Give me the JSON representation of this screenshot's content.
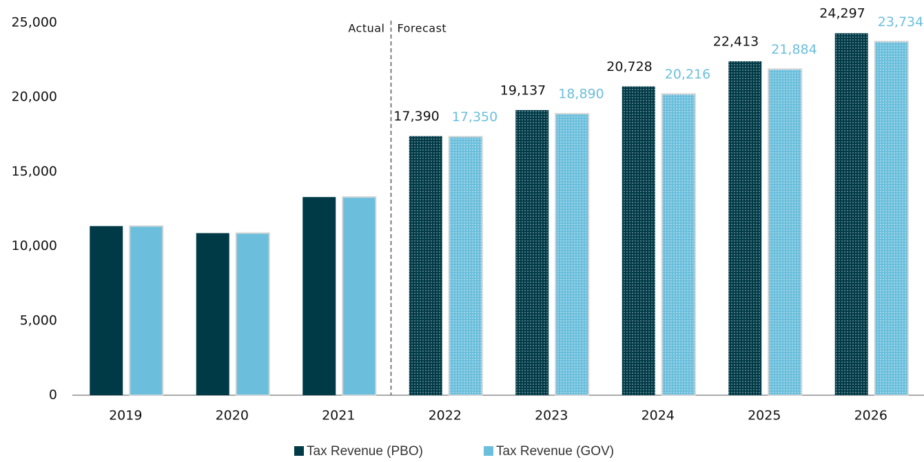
{
  "chart_data": {
    "type": "bar",
    "categories": [
      "2019",
      "2020",
      "2021",
      "2022",
      "2023",
      "2024",
      "2025",
      "2026"
    ],
    "series": [
      {
        "name": "Tax Revenue (PBO)",
        "color": "#003a47",
        "values": [
          11350,
          10880,
          13300,
          17390,
          19137,
          20728,
          22413,
          24297
        ],
        "value_labels": [
          null,
          null,
          null,
          "17,390",
          "19,137",
          "20,728",
          "22,413",
          "24,297"
        ]
      },
      {
        "name": "Tax Revenue (GOV)",
        "color": "#6bbfdc",
        "values": [
          11350,
          10880,
          13300,
          17350,
          18890,
          20216,
          21884,
          23734
        ],
        "value_labels": [
          null,
          null,
          null,
          "17,350",
          "18,890",
          "20,216",
          "21,884",
          "23,734"
        ]
      }
    ],
    "annotations": [
      "Actual",
      "Forecast"
    ],
    "ylim": [
      0,
      25000
    ],
    "yticks": [
      0,
      {
        "value": 5000,
        "label": "5,000"
      },
      {
        "value": 10000,
        "label": "10,000"
      },
      {
        "value": 15000,
        "label": "15,000"
      },
      {
        "value": 20000,
        "label": "20,000"
      },
      {
        "value": 25000,
        "label": "25,000"
      }
    ],
    "grid": false,
    "legend": "bottom"
  }
}
